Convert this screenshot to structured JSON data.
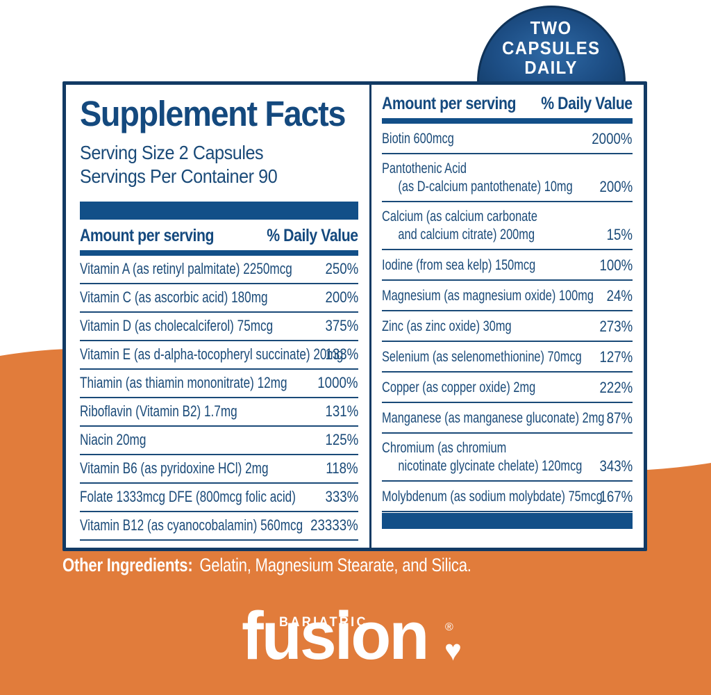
{
  "colors": {
    "navy_text": "#1a4a78",
    "navy_bar": "#124f88",
    "navy_border": "#123a64",
    "orange": "#e17c3b",
    "white": "#ffffff"
  },
  "badge": {
    "lines": [
      "TWO",
      "CAPSULES",
      "DAILY"
    ]
  },
  "supplement_facts": {
    "title": "Supplement Facts",
    "serving_size": "Serving Size 2 Capsules",
    "servings_per_container": "Servings Per Container 90",
    "column_headers": {
      "amount": "Amount per serving",
      "daily_value": "% Daily Value"
    },
    "left_rows": [
      {
        "name": "Vitamin A (as retinyl palmitate) 2250mcg",
        "dv": "250%"
      },
      {
        "name": "Vitamin C (as ascorbic acid) 180mg",
        "dv": "200%"
      },
      {
        "name": "Vitamin D (as cholecalciferol) 75mcg",
        "dv": "375%"
      },
      {
        "name": "Vitamin E (as d-alpha-tocopheryl succinate) 20mg",
        "dv": "133%"
      },
      {
        "name": "Thiamin (as thiamin mononitrate) 12mg",
        "dv": "1000%"
      },
      {
        "name": "Riboflavin (Vitamin B2) 1.7mg",
        "dv": "131%"
      },
      {
        "name": "Niacin 20mg",
        "dv": "125%"
      },
      {
        "name": "Vitamin B6 (as pyridoxine HCl) 2mg",
        "dv": "118%"
      },
      {
        "name": "Folate 1333mcg DFE (800mcg folic acid)",
        "dv": "333%"
      },
      {
        "name": "Vitamin B12 (as cyanocobalamin) 560mcg",
        "dv": "23333%"
      }
    ],
    "right_rows": [
      {
        "name": "Biotin 600mcg",
        "dv": "2000%"
      },
      {
        "name": "Pantothenic Acid",
        "name2": "(as D-calcium pantothenate) 10mg",
        "dv": "200%"
      },
      {
        "name": "Calcium (as calcium carbonate",
        "name2": "and calcium citrate) 200mg",
        "dv": "15%"
      },
      {
        "name": "Iodine (from sea kelp) 150mcg",
        "dv": "100%"
      },
      {
        "name": "Magnesium (as magnesium oxide) 100mg",
        "dv": "24%"
      },
      {
        "name": "Zinc (as zinc oxide) 30mg",
        "dv": "273%"
      },
      {
        "name": "Selenium (as selenomethionine) 70mcg",
        "dv": "127%"
      },
      {
        "name": "Copper (as copper oxide) 2mg",
        "dv": "222%"
      },
      {
        "name": "Manganese (as manganese gluconate) 2mg",
        "dv": "87%"
      },
      {
        "name": "Chromium (as chromium",
        "name2": "nicotinate glycinate chelate) 120mcg",
        "dv": "343%"
      },
      {
        "name": "Molybdenum (as sodium molybdate) 75mcg",
        "dv": "167%"
      }
    ]
  },
  "other_ingredients": {
    "label": "Other Ingredients:",
    "text": "Gelatin, Magnesium Stearate, and Silica."
  },
  "logo": {
    "brand_top": "BARIATRIC",
    "brand_main": "fusion",
    "registered": "®",
    "heart": "♥"
  }
}
